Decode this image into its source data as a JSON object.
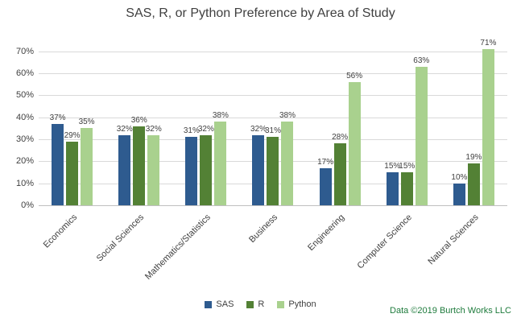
{
  "attribution": "Data ©2019 Burtch Works LLC",
  "chart_data": {
    "type": "bar",
    "title": "SAS, R, or Python Preference by Area of Study",
    "categories": [
      "Economics",
      "Social Sciences",
      "Mathematics/Statistics",
      "Business",
      "Engineering",
      "Computer Science",
      "Natural Sciences"
    ],
    "series": [
      {
        "name": "SAS",
        "color": "#2e5b8f",
        "values": [
          37,
          32,
          31,
          32,
          17,
          15,
          10
        ]
      },
      {
        "name": "R",
        "color": "#538135",
        "values": [
          29,
          36,
          32,
          31,
          28,
          15,
          19
        ]
      },
      {
        "name": "Python",
        "color": "#a9d18e",
        "values": [
          35,
          32,
          38,
          38,
          56,
          63,
          71
        ]
      }
    ],
    "yticks": [
      0,
      10,
      20,
      30,
      40,
      50,
      60,
      70
    ],
    "ylim": [
      0,
      75
    ],
    "y_suffix": "%",
    "xlabel": "",
    "ylabel": "",
    "legend_position": "bottom",
    "grid": true,
    "data_labels": true
  }
}
